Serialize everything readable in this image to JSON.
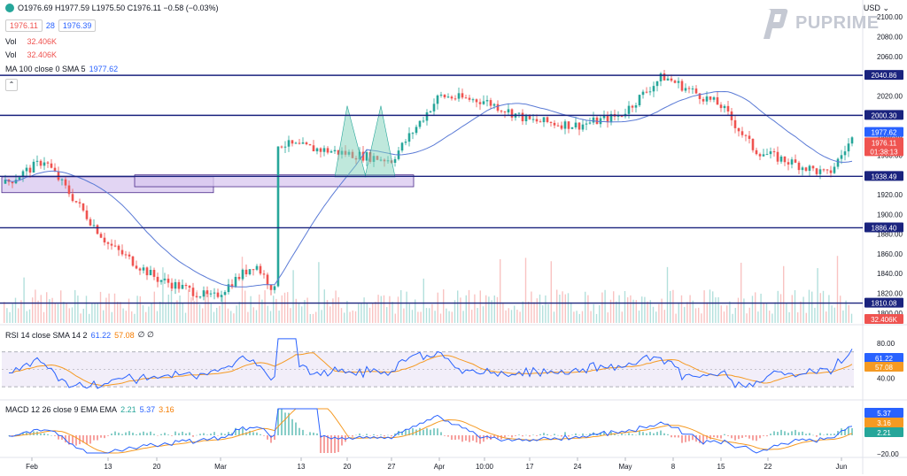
{
  "header": {
    "ohlc": "O1976.69 H1977.59 L1975.50 C1976.11 −0.58 (−0.03%)",
    "bid": "1976.11",
    "spread": "28",
    "ask": "1976.39",
    "vol_label": "Vol",
    "vol_value": "32.406K",
    "ma_label": "MA 100 close 0 SMA 5",
    "ma_value": "1977.62",
    "currency": "USD"
  },
  "brand": {
    "name": "PUPRIME",
    "color": "#c5c9d3"
  },
  "colors": {
    "up": "#26a69a",
    "down": "#ef5350",
    "line": "#1a237e",
    "ma": "#5b7bd6",
    "rsi": "#2962ff",
    "signal": "#f59a23"
  },
  "price_axis": {
    "ticks": [
      "2100.00",
      "2080.00",
      "2060.00",
      "2040.00",
      "2020.00",
      "2000.00",
      "1980.00",
      "1960.00",
      "1940.00",
      "1920.00",
      "1900.00",
      "1880.00",
      "1860.00",
      "1840.00",
      "1820.00",
      "1800.00"
    ],
    "labels": [
      {
        "text": "2040.86",
        "style": "navy"
      },
      {
        "text": "2000.30",
        "style": "navy"
      },
      {
        "text": "1977.62",
        "style": "blue"
      },
      {
        "text": "1976.11",
        "style": "red"
      },
      {
        "text": "01:38:13",
        "style": "red"
      },
      {
        "text": "1938.49",
        "style": "navy"
      },
      {
        "text": "1886.40",
        "style": "navy"
      },
      {
        "text": "1810.08",
        "style": "navy"
      },
      {
        "text": "32.406K",
        "style": "red"
      }
    ]
  },
  "rsi": {
    "label": "RSI 14 close SMA 14 2",
    "value": "61.22",
    "sma_value": "57.08",
    "flags": "∅ ∅",
    "ticks": [
      "80.00",
      "40.00"
    ],
    "labels": [
      {
        "text": "61.22",
        "style": "blue"
      },
      {
        "text": "57.08",
        "style": "orange"
      }
    ]
  },
  "macd": {
    "label": "MACD 12 26 close 9 EMA EMA",
    "hist_value": "2.21",
    "macd_value": "5.37",
    "signal_value": "3.16",
    "ticks": [
      "−20.00"
    ],
    "labels": [
      {
        "text": "5.37",
        "style": "blue"
      },
      {
        "text": "3.16",
        "style": "orange"
      },
      {
        "text": "2.21",
        "style": "teal"
      }
    ]
  },
  "time_axis": [
    "Feb",
    "13",
    "20",
    "Mar",
    "13",
    "20",
    "27",
    "Apr",
    "10:00",
    "17",
    "24",
    "May",
    "8",
    "15",
    "22",
    "Jun"
  ],
  "chart_data": [
    {
      "type": "candlestick",
      "title": "",
      "ylim": [
        1790,
        2110
      ],
      "horizontal_levels": [
        2040.86,
        2000.3,
        1938.49,
        1886.4,
        1810.08
      ],
      "ma_last": 1977.62,
      "last_price": 1976.11,
      "key_points": [
        {
          "x": "Feb",
          "price": 1930
        },
        {
          "x": "Feb",
          "price": 1955
        },
        {
          "x": "13",
          "price": 1870
        },
        {
          "x": "20",
          "price": 1835
        },
        {
          "x": "Mar",
          "price": 1815
        },
        {
          "x": "Mar",
          "price": 1850
        },
        {
          "x": "13",
          "price": 1820
        },
        {
          "x": "20",
          "price": 1990
        },
        {
          "x": "27",
          "price": 1955
        },
        {
          "x": "Apr",
          "price": 2020
        },
        {
          "x": "10:00",
          "price": 2015
        },
        {
          "x": "17",
          "price": 1995
        },
        {
          "x": "24",
          "price": 1990
        },
        {
          "x": "May",
          "price": 2000
        },
        {
          "x": "8",
          "price": 2040
        },
        {
          "x": "15",
          "price": 2010
        },
        {
          "x": "22",
          "price": 1965
        },
        {
          "x": "22",
          "price": 1940
        },
        {
          "x": "Jun",
          "price": 1976
        }
      ],
      "zones": [
        {
          "from_x": "Feb",
          "to_x": "20",
          "low": 1922,
          "high": 1938
        },
        {
          "from_x": "20",
          "to_x": "27",
          "low": 1928,
          "high": 1940
        }
      ]
    },
    {
      "type": "line",
      "title": "RSI",
      "ylim": [
        20,
        90
      ],
      "bands": [
        30,
        70
      ],
      "series": [
        {
          "name": "RSI",
          "last": 61.22
        },
        {
          "name": "SMA",
          "last": 57.08
        }
      ]
    },
    {
      "type": "line",
      "title": "MACD",
      "series": [
        {
          "name": "MACD",
          "last": 5.37
        },
        {
          "name": "Signal",
          "last": 3.16
        },
        {
          "name": "Histogram",
          "last": 2.21
        }
      ]
    }
  ]
}
